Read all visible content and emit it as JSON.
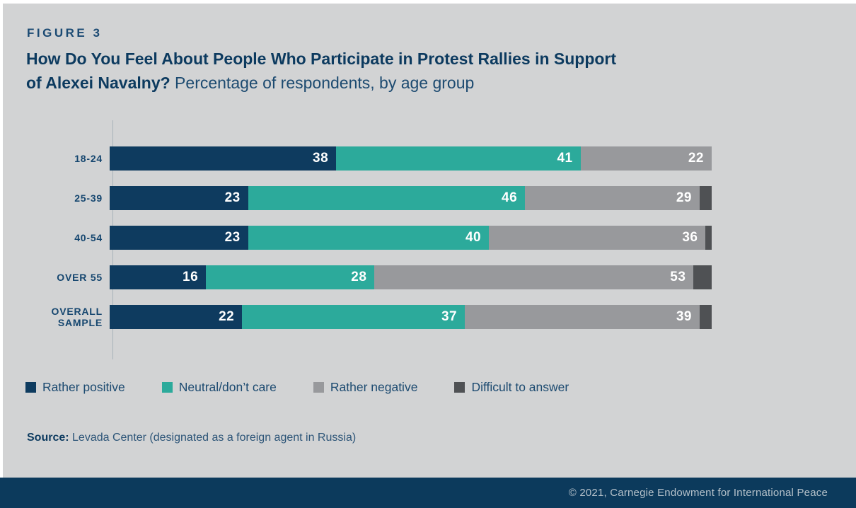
{
  "figure_label": "FIGURE 3",
  "heading": {
    "bold_line1": "How Do You Feel About People Who Participate in Protest Rallies in Support",
    "bold_line2": "of Alexei Navalny?",
    "subtitle": " Percentage of respondents, by age group"
  },
  "chart_data": {
    "type": "bar",
    "stacked": true,
    "orientation": "horizontal",
    "title": "How Do You Feel About People Who Participate in Protest Rallies in Support of Alexei Navalny?",
    "subtitle": "Percentage of respondents, by age group",
    "categories": [
      "18-24",
      "25-39",
      "40-54",
      "OVER 55",
      "OVERALL\nSAMPLE"
    ],
    "series": [
      {
        "key": "rather-positive",
        "name": "Rather positive",
        "color": "#0e3b5f",
        "show_labels": true,
        "values": [
          38,
          23,
          23,
          16,
          22
        ]
      },
      {
        "key": "neutral-dont-care",
        "name": "Neutral/don’t care",
        "color": "#2caa9b",
        "show_labels": true,
        "values": [
          41,
          46,
          40,
          28,
          37
        ]
      },
      {
        "key": "rather-negative",
        "name": "Rather negative",
        "color": "#98999c",
        "show_labels": true,
        "values": [
          22,
          29,
          36,
          53,
          39
        ]
      },
      {
        "key": "difficult-to-answer",
        "name": "Difficult to answer",
        "color": "#4f5154",
        "show_labels": false,
        "values_estimated": true,
        "values": [
          0,
          2,
          1,
          3,
          2
        ]
      }
    ],
    "xlim": [
      0,
      100
    ],
    "grid": false,
    "legend_position": "bottom"
  },
  "source": {
    "label": "Source:",
    "text": " Levada Center (designated as a foreign agent in Russia)"
  },
  "footer": {
    "text": "© 2021, Carnegie Endowment for International Peace"
  },
  "colors": {
    "background": "#d2d3d4",
    "rather_positive": "#0e3b5f",
    "neutral": "#2caa9b",
    "rather_negative": "#98999c",
    "difficult": "#4f5154",
    "footer_band": "#0c3a5c",
    "title_text": "#0c3a5f"
  }
}
